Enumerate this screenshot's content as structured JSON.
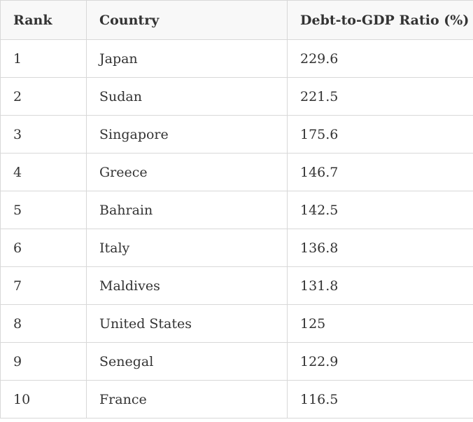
{
  "table": {
    "headers": [
      "Rank",
      "Country",
      "Debt-to-GDP Ratio (%)"
    ],
    "rows": [
      [
        "1",
        "Japan",
        "229.6"
      ],
      [
        "2",
        "Sudan",
        "221.5"
      ],
      [
        "3",
        "Singapore",
        "175.6"
      ],
      [
        "4",
        "Greece",
        "146.7"
      ],
      [
        "5",
        "Bahrain",
        "142.5"
      ],
      [
        "6",
        "Italy",
        "136.8"
      ],
      [
        "7",
        "Maldives",
        "131.8"
      ],
      [
        "8",
        "United States",
        "125"
      ],
      [
        "9",
        "Senegal",
        "122.9"
      ],
      [
        "10",
        "France",
        "116.5"
      ]
    ]
  },
  "colors": {
    "header_background": "#f8f8f8",
    "border": "#d8d8d8",
    "text": "#333333"
  }
}
